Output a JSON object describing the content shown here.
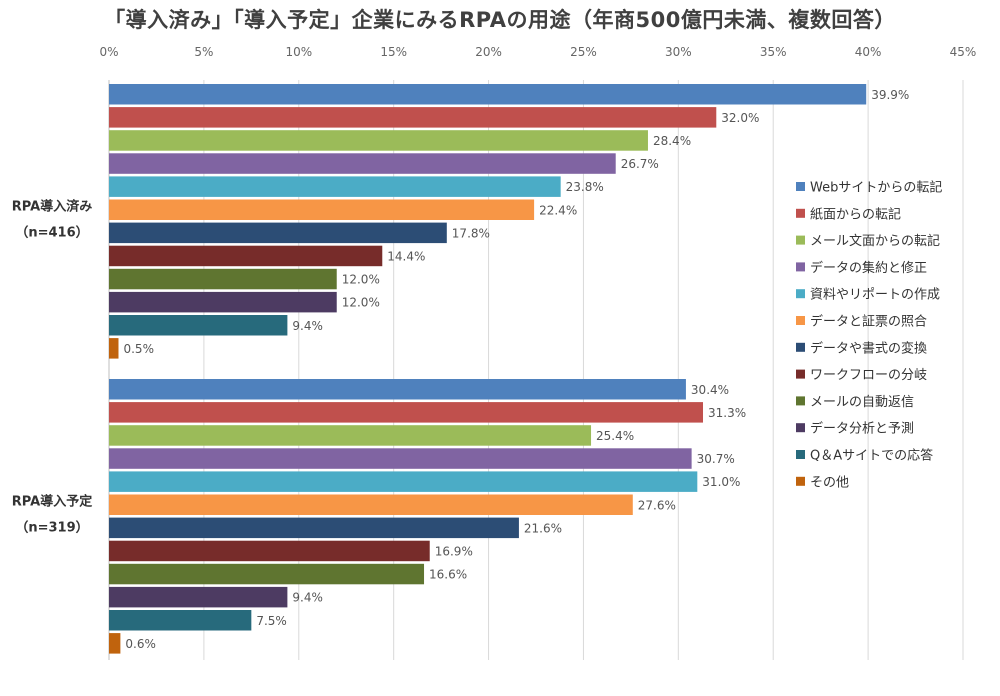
{
  "chart_data": {
    "type": "bar",
    "orientation": "horizontal",
    "title": "「導入済み」「導入予定」企業にみるRPAの用途（年商500億円未満、複数回答）",
    "x_ticks": [
      "0%",
      "5%",
      "10%",
      "15%",
      "20%",
      "25%",
      "30%",
      "35%",
      "40%",
      "45%"
    ],
    "xlim": [
      0,
      45
    ],
    "grid": true,
    "legend_position": "right",
    "categories": [
      "Webサイトからの転記",
      "紙面からの転記",
      "メール文面からの転記",
      "データの集約と修正",
      "資料やリポートの作成",
      "データと証票の照合",
      "データや書式の変換",
      "ワークフローの分岐",
      "メールの自動返信",
      "データ分析と予測",
      "Q＆Aサイトでの応答",
      "その他"
    ],
    "colors": [
      "#4F81BD",
      "#C0504D",
      "#9BBB59",
      "#8064A2",
      "#4BACC6",
      "#F79646",
      "#2C4D75",
      "#772C2A",
      "#5F7530",
      "#4D3B62",
      "#276A7C",
      "#C0630D"
    ],
    "groups": [
      {
        "label_line1": "RPA導入済み",
        "label_line2": "（n=416）",
        "values": [
          39.9,
          32.0,
          28.4,
          26.7,
          23.8,
          22.4,
          17.8,
          14.4,
          12.0,
          12.0,
          9.4,
          0.5
        ],
        "value_labels": [
          "39.9%",
          "32.0%",
          "28.4%",
          "26.7%",
          "23.8%",
          "22.4%",
          "17.8%",
          "14.4%",
          "12.0%",
          "12.0%",
          "9.4%",
          "0.5%"
        ]
      },
      {
        "label_line1": "RPA導入予定",
        "label_line2": "（n=319）",
        "values": [
          30.4,
          31.3,
          25.4,
          30.7,
          31.0,
          27.6,
          21.6,
          16.9,
          16.6,
          9.4,
          7.5,
          0.6
        ],
        "value_labels": [
          "30.4%",
          "31.3%",
          "25.4%",
          "30.7%",
          "31.0%",
          "27.6%",
          "21.6%",
          "16.9%",
          "16.6%",
          "9.4%",
          "7.5%",
          "0.6%"
        ]
      }
    ]
  }
}
